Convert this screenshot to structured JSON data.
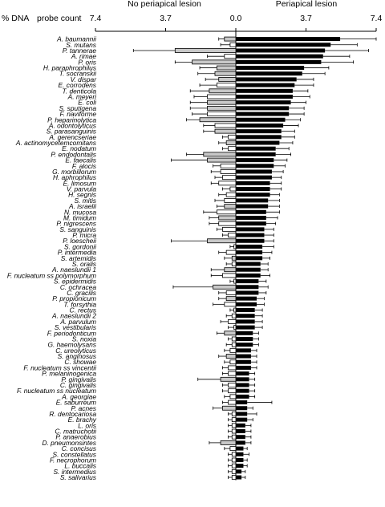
{
  "chart_data": {
    "type": "bar",
    "orientation": "horizontal",
    "layout": "butterfly",
    "header": {
      "y_axis_label": "% DNA",
      "x_axis_label": "probe count",
      "left_group": "No periapical lesion",
      "right_group": "Periapical lesion"
    },
    "xlim": [
      0,
      7.4
    ],
    "ticks": [
      "7.4",
      "3.7",
      "0.0",
      "3.7",
      "7.4"
    ],
    "tick_values": [
      -7.4,
      -3.7,
      0,
      3.7,
      7.4
    ],
    "colors": {
      "left_bar": "#ffffff",
      "left_bar_alt": "#c8c8c8",
      "right_bar": "#000000",
      "edge": "#000000"
    },
    "categories": [
      "A. baumannii",
      "S. mutans",
      "P. tannerae",
      "A. rimae",
      "P. oris",
      "H. paraphrophilus",
      "T. socranskii",
      "V. dispar",
      "E. corrodens",
      "T. denticola",
      "A. meyeri",
      "E. coli",
      "S. sputigena",
      "F. naviforme",
      "P. heparinolytica",
      "A. odontolyticus",
      "S. parasanguinis",
      "A. gerencseriae",
      "A. actinomycetemcomitans",
      "E. nodatum",
      "P. endodontalis",
      "E. faecalis",
      "F. alocis",
      "G. morbillorum",
      "H. aphrophilus",
      "E. limosum",
      "V. parvula",
      "H. segnis",
      "S. mitis",
      "A. israelii",
      "N. mucosa",
      "M. timidum",
      "P. nigrescens",
      "S. sanguinis",
      "P. micra",
      "P. loescheii",
      "S. gordonii",
      "P. intermedia",
      "S. artemidis",
      "S. oralis",
      "A. naeslundii 1",
      "F. nucleatum ss polymorphum",
      "S. epidermidis",
      "C. ochracea",
      "C. gracilis",
      "P. propionicum",
      "T. forsythia",
      "C. rectus",
      "A. naeslundii 2",
      "A. parvulum",
      "S. vestibularis",
      "F. periodonticum",
      "S. noxia",
      "G. haemolysans",
      "C. ureolyticus",
      "S. anginosus",
      "C. showae",
      "F. nucleatum ss vincentii",
      "P. melaninogenica",
      "P. gingivalis",
      "C. gingivalis",
      "F. nucleatum ss nucleatum",
      "A. georgiae",
      "E. saburreum",
      "P. acnes",
      "R. dentocariosa",
      "E. brachy",
      "L. oris",
      "C. matruchotii",
      "P. anaerobius",
      "D. pneumonsintes",
      "C. concisus",
      "S. constellatus",
      "F. necrophorum",
      "L. buccalis",
      "S. intermedius",
      "S. salivarius"
    ],
    "series": [
      {
        "name": "No periapical lesion",
        "values": [
          0.6,
          0.3,
          3.2,
          0.6,
          2.3,
          1.0,
          1.1,
          0.9,
          1.0,
          1.4,
          1.5,
          1.5,
          1.5,
          1.5,
          1.9,
          1.1,
          1.1,
          0.4,
          0.5,
          0.4,
          1.7,
          1.5,
          0.8,
          0.8,
          0.7,
          0.9,
          0.3,
          0.5,
          0.6,
          0.6,
          1.0,
          0.9,
          0.9,
          0.7,
          0.4,
          1.5,
          0.1,
          0.5,
          0.2,
          0.2,
          0.6,
          0.7,
          0.1,
          1.2,
          0.5,
          0.5,
          0.6,
          0.1,
          0.2,
          0.4,
          0.1,
          0.6,
          0.2,
          0.2,
          0.3,
          0.5,
          0.3,
          0.4,
          0.4,
          0.8,
          0.4,
          0.4,
          0.3,
          0.4,
          0.7,
          0.2,
          0.2,
          0.2,
          0.2,
          0.2,
          0.8,
          0.3,
          0.2,
          0.2,
          0.2,
          0.2,
          0.2
        ],
        "errors": [
          0.3,
          0.5,
          2.2,
          0.9,
          0.9,
          0.9,
          0.9,
          0.7,
          0.9,
          1.0,
          0.7,
          0.9,
          0.9,
          0.8,
          0.7,
          0.6,
          0.6,
          0.3,
          0.4,
          0.3,
          0.9,
          1.9,
          0.4,
          0.5,
          0.4,
          0.4,
          0.4,
          0.4,
          0.5,
          0.4,
          0.7,
          0.5,
          0.5,
          0.3,
          0.3,
          1.9,
          0.2,
          0.4,
          0.4,
          0.3,
          0.7,
          0.6,
          0.2,
          2.1,
          0.4,
          0.4,
          0.6,
          0.2,
          0.3,
          0.4,
          0.3,
          0.4,
          0.2,
          0.3,
          0.3,
          0.4,
          0.3,
          0.3,
          0.3,
          1.2,
          0.3,
          0.3,
          0.3,
          0.3,
          0.5,
          0.2,
          0.2,
          0.2,
          0.2,
          0.2,
          0.6,
          0.3,
          0.2,
          0.2,
          0.2,
          0.2,
          0.2
        ],
        "shaded": [
          true,
          false,
          true,
          false,
          true,
          true,
          true,
          true,
          false,
          true,
          false,
          true,
          true,
          false,
          true,
          false,
          true,
          false,
          true,
          false,
          true,
          true,
          false,
          false,
          false,
          false,
          false,
          false,
          false,
          true,
          false,
          true,
          false,
          false,
          false,
          true,
          false,
          false,
          true,
          false,
          true,
          false,
          false,
          true,
          false,
          true,
          false,
          false,
          false,
          false,
          false,
          true,
          false,
          false,
          false,
          true,
          false,
          false,
          false,
          true,
          false,
          false,
          false,
          false,
          true,
          false,
          false,
          false,
          false,
          false,
          true,
          false,
          false,
          false,
          false,
          false,
          false
        ]
      },
      {
        "name": "Periapical lesion",
        "values": [
          5.5,
          5.0,
          4.7,
          4.6,
          4.5,
          3.6,
          3.5,
          3.2,
          3.1,
          3.0,
          3.0,
          2.9,
          2.8,
          2.8,
          2.6,
          2.5,
          2.4,
          2.4,
          2.3,
          2.1,
          2.1,
          2.0,
          2.0,
          1.9,
          1.9,
          1.8,
          1.8,
          1.8,
          1.7,
          1.7,
          1.6,
          1.6,
          1.6,
          1.5,
          1.5,
          1.5,
          1.4,
          1.4,
          1.4,
          1.3,
          1.3,
          1.3,
          1.2,
          1.2,
          1.2,
          1.1,
          1.1,
          1.0,
          1.0,
          1.0,
          1.0,
          0.9,
          0.9,
          0.9,
          0.8,
          0.8,
          0.8,
          0.8,
          0.7,
          0.7,
          0.7,
          0.7,
          0.7,
          0.6,
          0.6,
          0.6,
          0.6,
          0.5,
          0.5,
          0.5,
          0.5,
          0.4,
          0.4,
          0.4,
          0.4,
          0.3,
          0.3
        ],
        "errors": [
          1.9,
          1.4,
          2.3,
          1.4,
          1.7,
          1.3,
          1.2,
          0.9,
          1.0,
          0.8,
          0.9,
          0.8,
          0.8,
          0.8,
          0.8,
          0.8,
          0.7,
          0.7,
          0.7,
          0.7,
          0.8,
          0.7,
          0.6,
          0.6,
          0.5,
          0.6,
          0.6,
          0.5,
          0.6,
          0.6,
          0.7,
          0.6,
          0.5,
          0.5,
          0.5,
          0.5,
          0.6,
          0.5,
          0.4,
          0.4,
          0.4,
          0.5,
          0.4,
          0.5,
          0.4,
          0.4,
          0.4,
          0.4,
          0.4,
          0.4,
          0.4,
          0.3,
          0.3,
          0.3,
          0.3,
          0.3,
          0.3,
          0.3,
          0.3,
          0.3,
          0.3,
          0.3,
          0.3,
          1.3,
          0.3,
          0.5,
          0.3,
          0.3,
          0.3,
          0.3,
          0.3,
          0.2,
          0.3,
          0.2,
          0.2,
          0.2,
          0.2
        ]
      }
    ]
  }
}
